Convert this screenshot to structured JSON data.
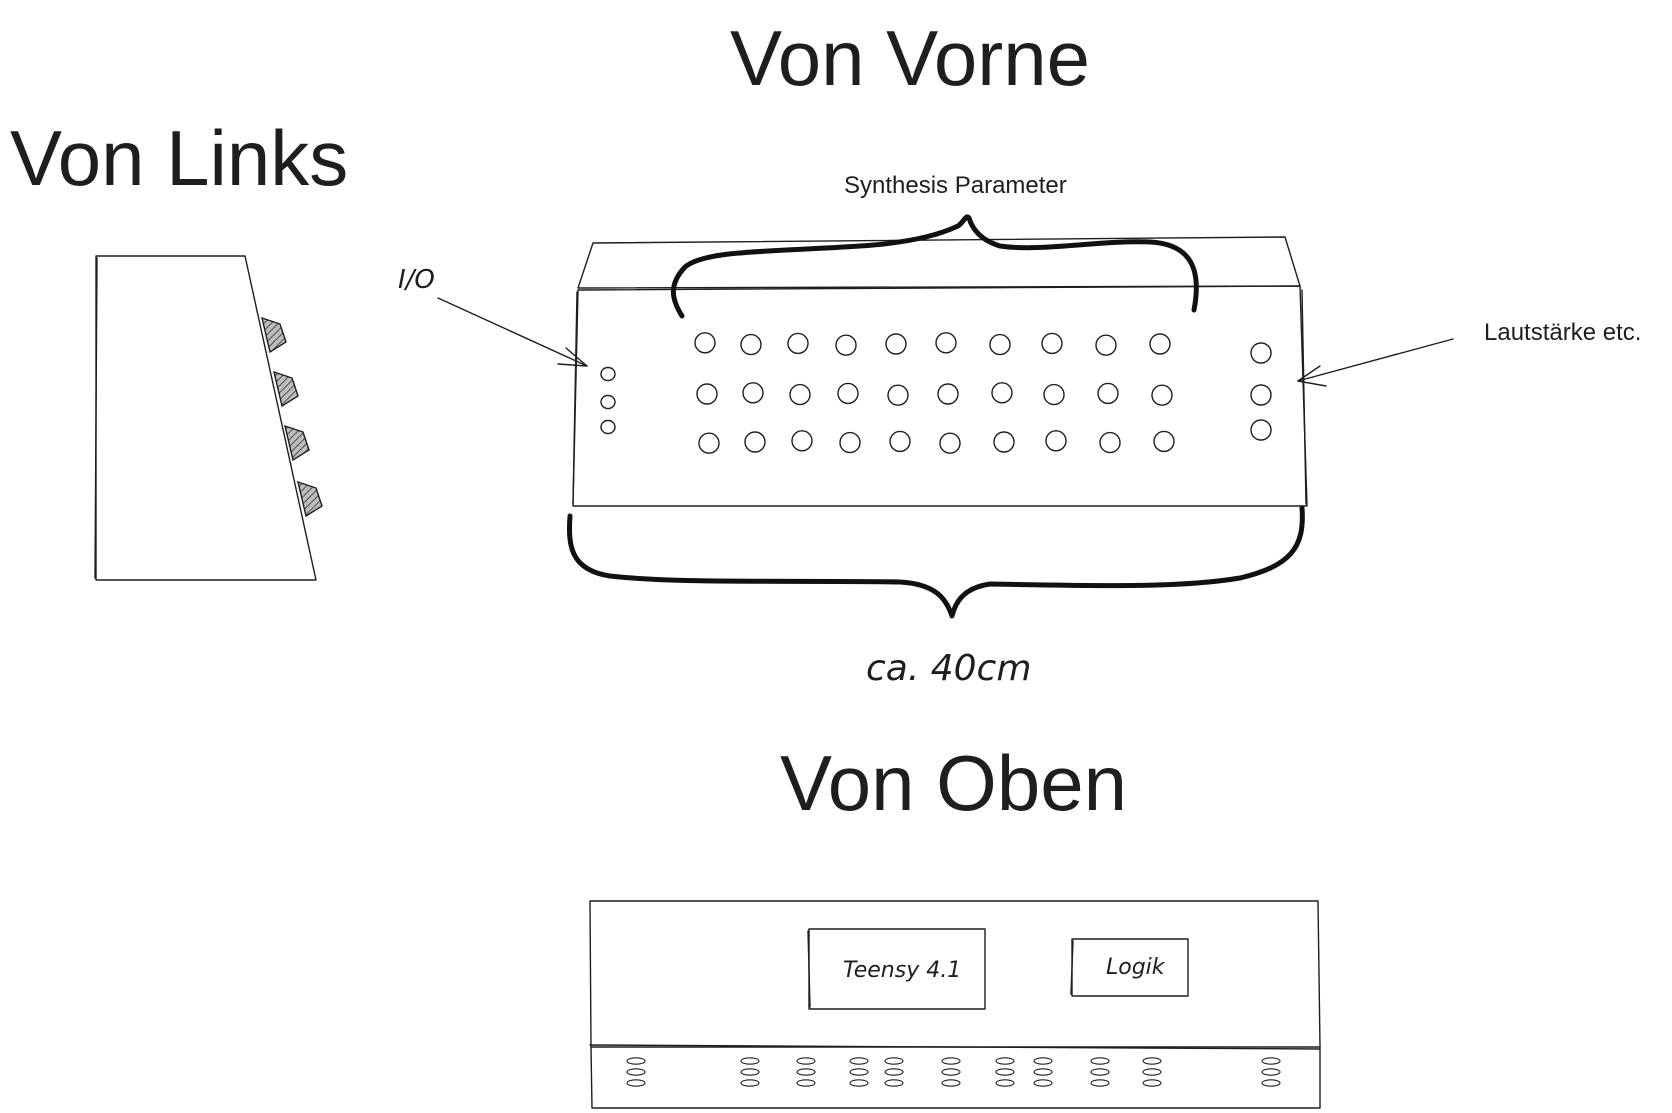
{
  "titles": {
    "front": "Von Vorne",
    "left": "Von Links",
    "top": "Von Oben"
  },
  "annotations": {
    "synthesis": "Synthesis Parameter",
    "io": "I/O",
    "volume": "Lautstärke etc.",
    "width": "ca. 40cm"
  },
  "components": {
    "teensy": "Teensy 4.1",
    "logic": "Logik"
  },
  "front_panel": {
    "synthesis_rows": 3,
    "synthesis_columns": 10,
    "io_knobs": 3,
    "volume_knobs": 3
  },
  "side_view": {
    "knobs": 4
  }
}
